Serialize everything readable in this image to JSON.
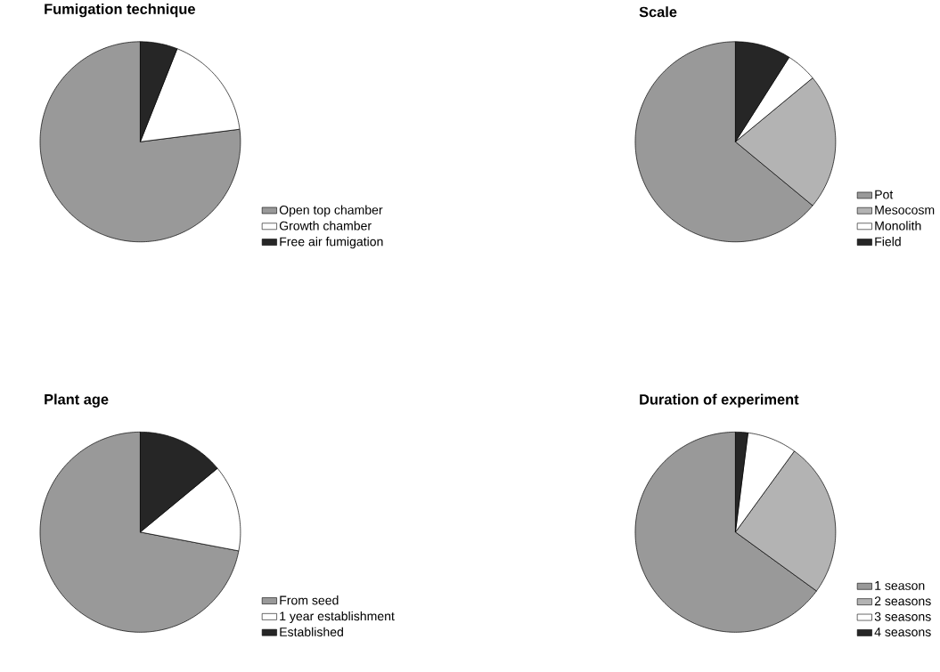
{
  "chart_data": [
    {
      "type": "pie",
      "title": "Fumigation technique",
      "categories": [
        "Open top chamber",
        "Growth chamber",
        "Free air fumigation"
      ],
      "values": [
        77,
        17,
        6
      ],
      "colors": [
        "#999999",
        "#ffffff",
        "#262626"
      ],
      "legend": "right"
    },
    {
      "type": "pie",
      "title": "Scale",
      "categories": [
        "Pot",
        "Mesocosm",
        "Monolith",
        "Field"
      ],
      "values": [
        64,
        22,
        5,
        9
      ],
      "colors": [
        "#999999",
        "#b3b3b3",
        "#ffffff",
        "#262626"
      ],
      "legend": "right"
    },
    {
      "type": "pie",
      "title": "Plant age",
      "categories": [
        "From seed",
        "1 year establishment",
        "Established"
      ],
      "values": [
        72,
        14,
        14
      ],
      "colors": [
        "#999999",
        "#ffffff",
        "#262626"
      ],
      "legend": "right"
    },
    {
      "type": "pie",
      "title": "Duration of experiment",
      "categories": [
        "1 season",
        "2 seasons",
        "3 seasons",
        "4 seasons"
      ],
      "values": [
        65,
        25,
        8,
        2
      ],
      "colors": [
        "#999999",
        "#b3b3b3",
        "#ffffff",
        "#262626"
      ],
      "legend": "right"
    }
  ]
}
